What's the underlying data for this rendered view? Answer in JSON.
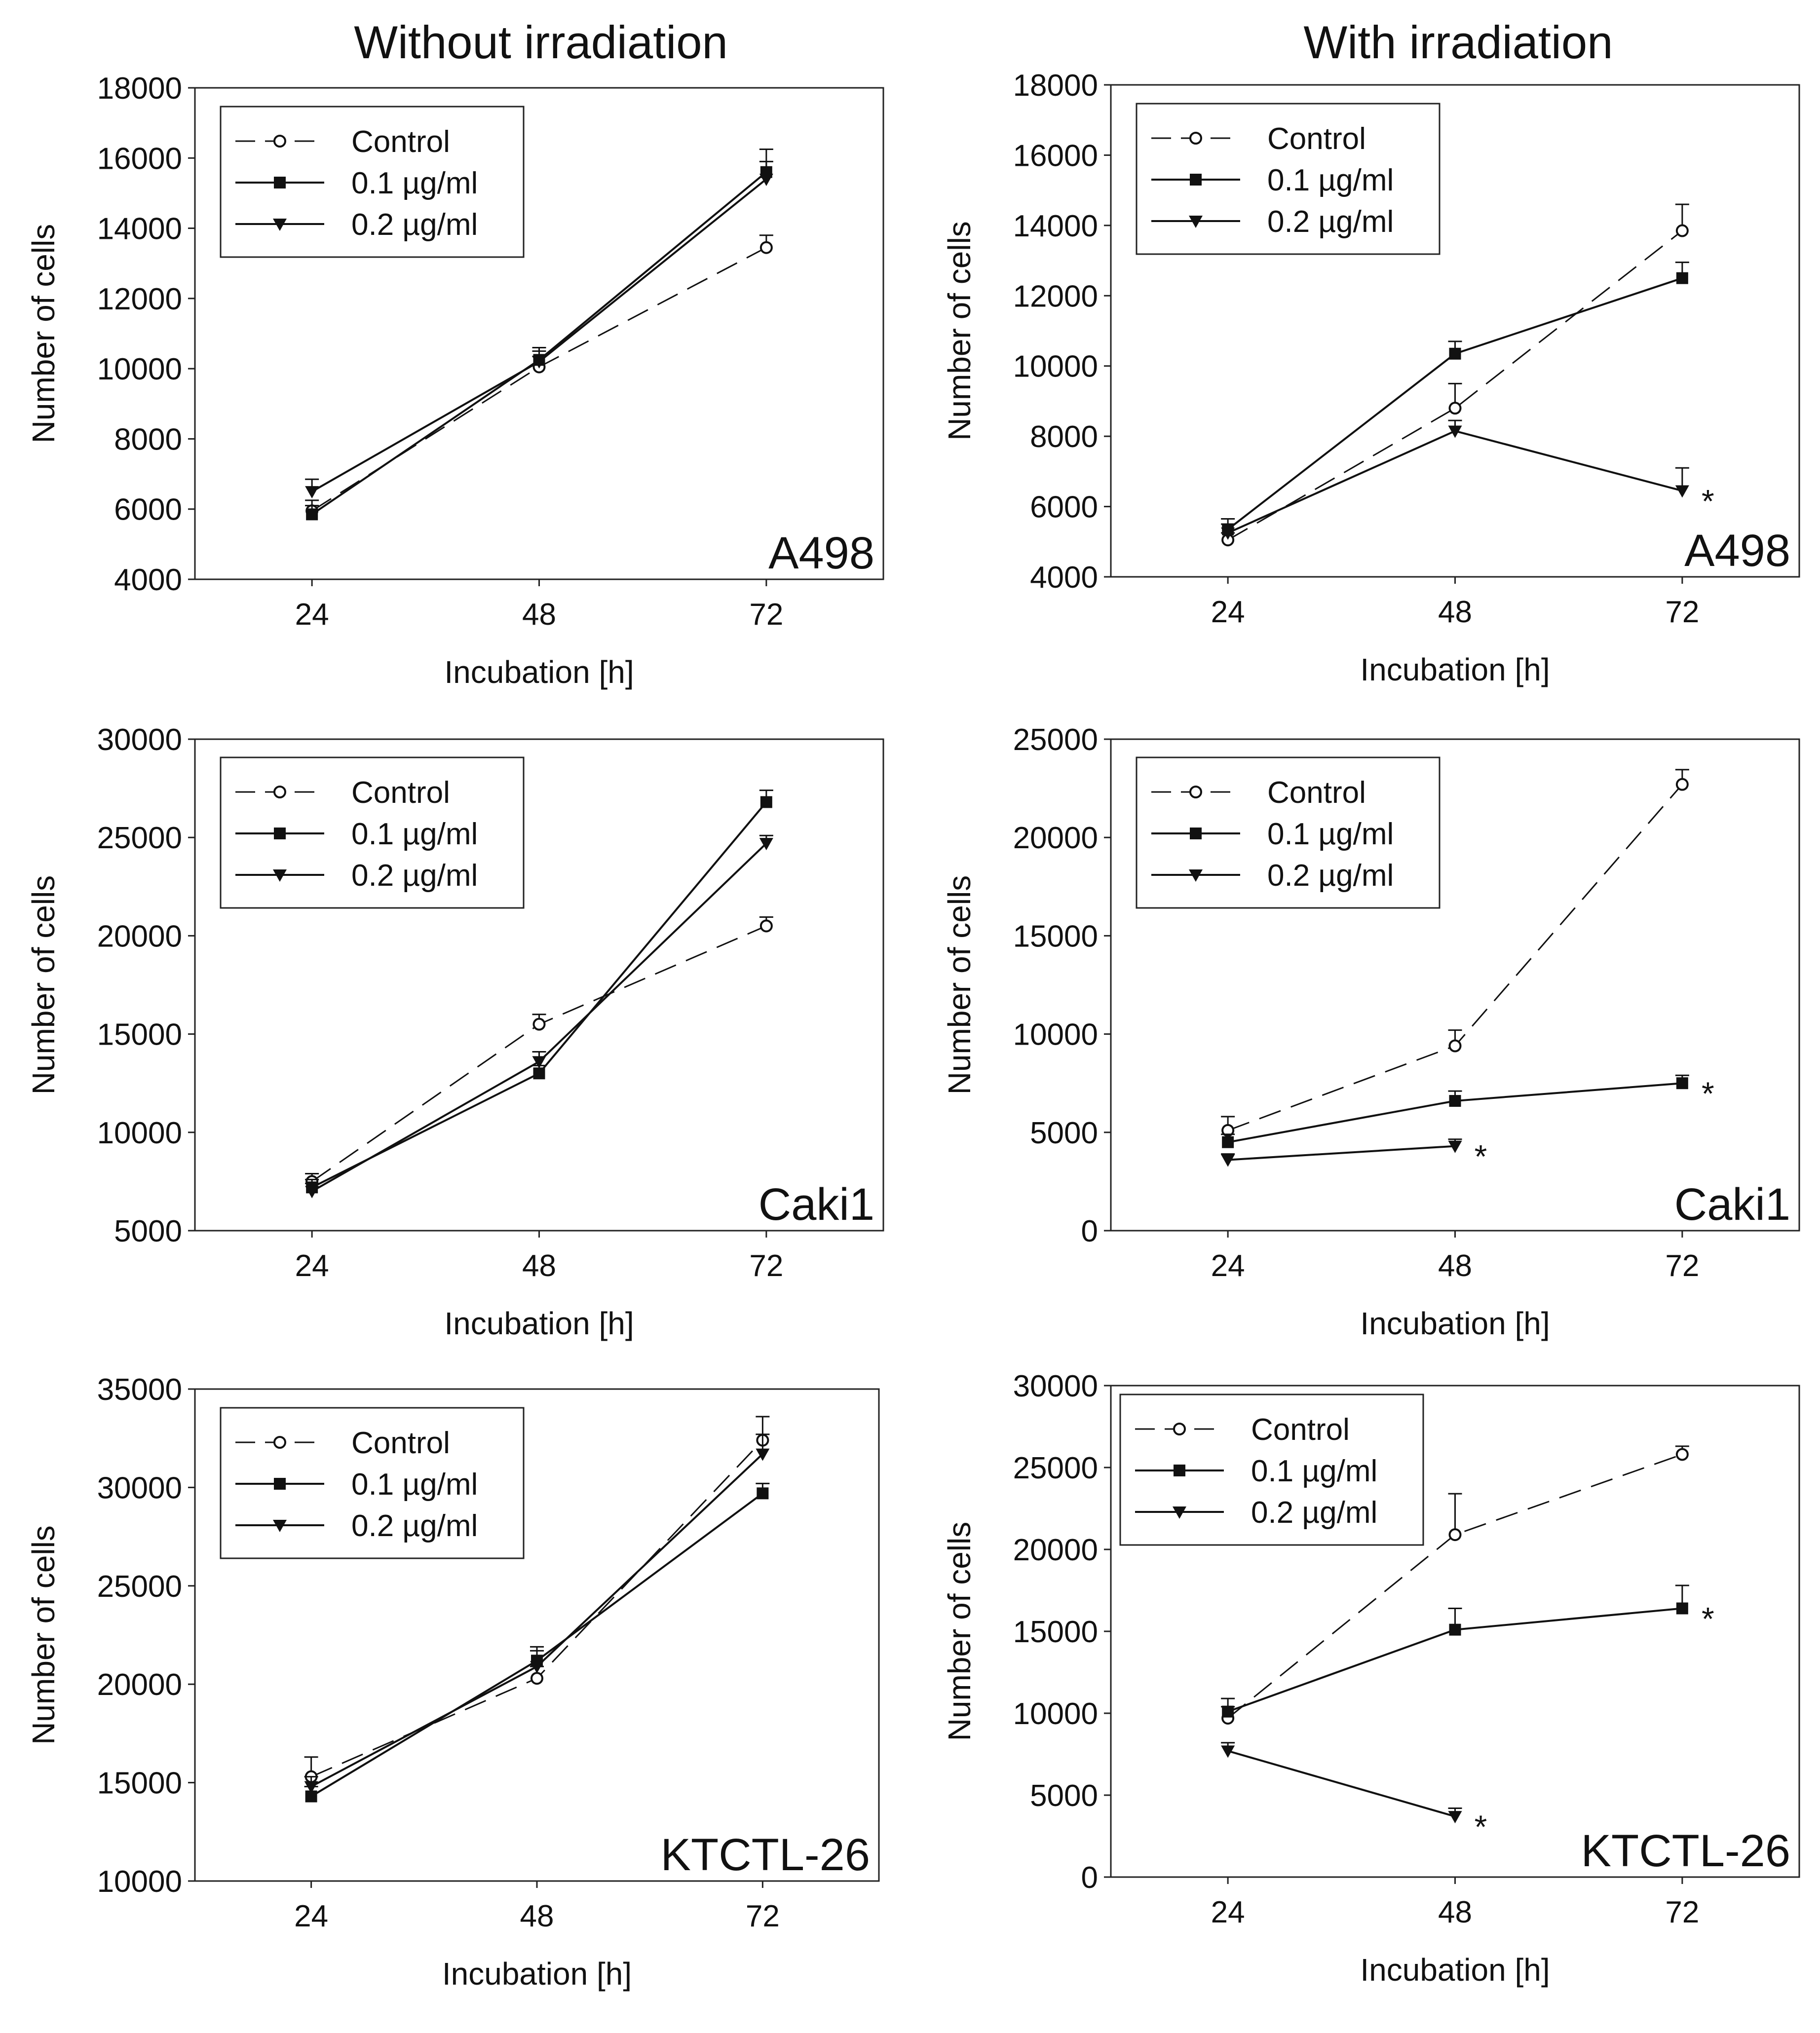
{
  "figure": {
    "column_titles": [
      "Without irradiation",
      "With irradiation"
    ]
  },
  "chart_data": [
    {
      "type": "line",
      "panel": "without-irradiation-A498",
      "cell_line": "A498",
      "xlabel": "Incubation [h]",
      "ylabel": "Number of cells",
      "categories": [
        "24",
        "48",
        "72"
      ],
      "ylim": [
        4000,
        18000
      ],
      "yticks": [
        "4000",
        "6000",
        "8000",
        "10000",
        "12000",
        "14000",
        "16000",
        "18000"
      ],
      "legend": [
        "Control",
        "0.1 µg/ml",
        "0.2 µg/ml"
      ],
      "legend_position": "top-left",
      "series": [
        {
          "name": "Control",
          "style": "dashed",
          "marker": "open-circle",
          "values": [
            5950,
            10050,
            13450
          ],
          "errors": [
            300,
            300,
            350
          ],
          "significant": [
            false,
            false,
            false
          ]
        },
        {
          "name": "0.1 µg/ml",
          "style": "solid",
          "marker": "filled-square",
          "values": [
            5850,
            10250,
            15600
          ],
          "errors": [
            250,
            350,
            650
          ],
          "significant": [
            false,
            false,
            false
          ]
        },
        {
          "name": "0.2 µg/ml",
          "style": "solid",
          "marker": "filled-triangle",
          "values": [
            6500,
            10200,
            15400
          ],
          "errors": [
            350,
            300,
            500
          ],
          "significant": [
            false,
            false,
            false
          ]
        }
      ]
    },
    {
      "type": "line",
      "panel": "with-irradiation-A498",
      "cell_line": "A498",
      "xlabel": "Incubation [h]",
      "ylabel": "Number of cells",
      "categories": [
        "24",
        "48",
        "72"
      ],
      "ylim": [
        4000,
        18000
      ],
      "yticks": [
        "4000",
        "6000",
        "8000",
        "10000",
        "12000",
        "14000",
        "16000",
        "18000"
      ],
      "legend": [
        "Control",
        "0.1 µg/ml",
        "0.2 µg/ml"
      ],
      "legend_position": "top-left",
      "series": [
        {
          "name": "Control",
          "style": "dashed",
          "marker": "open-circle",
          "values": [
            5050,
            8800,
            13850
          ],
          "errors": [
            200,
            700,
            750
          ],
          "significant": [
            false,
            false,
            false
          ]
        },
        {
          "name": "0.1 µg/ml",
          "style": "solid",
          "marker": "filled-square",
          "values": [
            5350,
            10350,
            12500
          ],
          "errors": [
            300,
            350,
            450
          ],
          "significant": [
            false,
            false,
            false
          ]
        },
        {
          "name": "0.2 µg/ml",
          "style": "solid",
          "marker": "filled-triangle",
          "values": [
            5250,
            8150,
            6450
          ],
          "errors": [
            250,
            300,
            650
          ],
          "significant": [
            false,
            false,
            true
          ]
        }
      ]
    },
    {
      "type": "line",
      "panel": "without-irradiation-Caki1",
      "cell_line": "Caki1",
      "xlabel": "Incubation [h]",
      "ylabel": "Number of cells",
      "categories": [
        "24",
        "48",
        "72"
      ],
      "ylim": [
        5000,
        30000
      ],
      "yticks": [
        "5000",
        "10000",
        "15000",
        "20000",
        "25000",
        "30000"
      ],
      "legend": [
        "Control",
        "0.1 µg/ml",
        "0.2 µg/ml"
      ],
      "legend_position": "top-left",
      "series": [
        {
          "name": "Control",
          "style": "dashed",
          "marker": "open-circle",
          "values": [
            7500,
            15500,
            20500
          ],
          "errors": [
            400,
            500,
            450
          ],
          "significant": [
            false,
            false,
            false
          ]
        },
        {
          "name": "0.1 µg/ml",
          "style": "solid",
          "marker": "filled-square",
          "values": [
            7200,
            13000,
            26800
          ],
          "errors": [
            400,
            400,
            600
          ],
          "significant": [
            false,
            false,
            false
          ]
        },
        {
          "name": "0.2 µg/ml",
          "style": "solid",
          "marker": "filled-triangle",
          "values": [
            7000,
            13600,
            24700
          ],
          "errors": [
            400,
            500,
            400
          ],
          "significant": [
            false,
            false,
            false
          ]
        }
      ]
    },
    {
      "type": "line",
      "panel": "with-irradiation-Caki1",
      "cell_line": "Caki1",
      "xlabel": "Incubation [h]",
      "ylabel": "Number of cells",
      "categories": [
        "24",
        "48",
        "72"
      ],
      "ylim": [
        0,
        25000
      ],
      "yticks": [
        "0",
        "5000",
        "10000",
        "15000",
        "20000",
        "25000"
      ],
      "legend": [
        "Control",
        "0.1 µg/ml",
        "0.2 µg/ml"
      ],
      "legend_position": "top-left",
      "series": [
        {
          "name": "Control",
          "style": "dashed",
          "marker": "open-circle",
          "values": [
            5100,
            9400,
            22700
          ],
          "errors": [
            700,
            800,
            750
          ],
          "significant": [
            false,
            false,
            false
          ]
        },
        {
          "name": "0.1 µg/ml",
          "style": "solid",
          "marker": "filled-square",
          "values": [
            4500,
            6600,
            7500
          ],
          "errors": [
            400,
            500,
            400
          ],
          "significant": [
            false,
            false,
            true
          ]
        },
        {
          "name": "0.2 µg/ml",
          "style": "solid",
          "marker": "filled-triangle",
          "values": [
            3600,
            4300,
            null
          ],
          "errors": [
            300,
            350,
            null
          ],
          "significant": [
            false,
            true,
            false
          ]
        }
      ]
    },
    {
      "type": "line",
      "panel": "without-irradiation-KTCTL-26",
      "cell_line": "KTCTL-26",
      "xlabel": "Incubation [h]",
      "ylabel": "Number of cells",
      "categories": [
        "24",
        "48",
        "72"
      ],
      "ylim": [
        10000,
        35000
      ],
      "yticks": [
        "10000",
        "15000",
        "20000",
        "25000",
        "30000",
        "35000"
      ],
      "legend": [
        "Control",
        "0.1 µg/ml",
        "0.2 µg/ml"
      ],
      "legend_position": "top-left",
      "series": [
        {
          "name": "Control",
          "style": "dashed",
          "marker": "open-circle",
          "values": [
            15300,
            20300,
            32400
          ],
          "errors": [
            1000,
            600,
            1200
          ],
          "significant": [
            false,
            false,
            false
          ]
        },
        {
          "name": "0.1 µg/ml",
          "style": "solid",
          "marker": "filled-square",
          "values": [
            14300,
            21200,
            29700
          ],
          "errors": [
            500,
            700,
            500
          ],
          "significant": [
            false,
            false,
            false
          ]
        },
        {
          "name": "0.2 µg/ml",
          "style": "solid",
          "marker": "filled-triangle",
          "values": [
            14800,
            20900,
            31700
          ],
          "errors": [
            500,
            800,
            1000
          ],
          "significant": [
            false,
            false,
            false
          ]
        }
      ]
    },
    {
      "type": "line",
      "panel": "with-irradiation-KTCTL-26",
      "cell_line": "KTCTL-26",
      "xlabel": "Incubation [h]",
      "ylabel": "Number of cells",
      "categories": [
        "24",
        "48",
        "72"
      ],
      "ylim": [
        0,
        30000
      ],
      "yticks": [
        "0",
        "5000",
        "10000",
        "15000",
        "20000",
        "25000",
        "30000"
      ],
      "legend": [
        "Control",
        "0.1 µg/ml",
        "0.2 µg/ml"
      ],
      "legend_position": "top-left",
      "series": [
        {
          "name": "Control",
          "style": "dashed",
          "marker": "open-circle",
          "values": [
            9700,
            20900,
            25800
          ],
          "errors": [
            700,
            2500,
            500
          ],
          "significant": [
            false,
            false,
            false
          ]
        },
        {
          "name": "0.1 µg/ml",
          "style": "solid",
          "marker": "filled-square",
          "values": [
            10100,
            15100,
            16400
          ],
          "errors": [
            800,
            1300,
            1400
          ],
          "significant": [
            false,
            false,
            true
          ]
        },
        {
          "name": "0.2 µg/ml",
          "style": "solid",
          "marker": "filled-triangle",
          "values": [
            7700,
            3700,
            null
          ],
          "errors": [
            500,
            500,
            null
          ],
          "significant": [
            false,
            true,
            false
          ]
        }
      ]
    }
  ]
}
